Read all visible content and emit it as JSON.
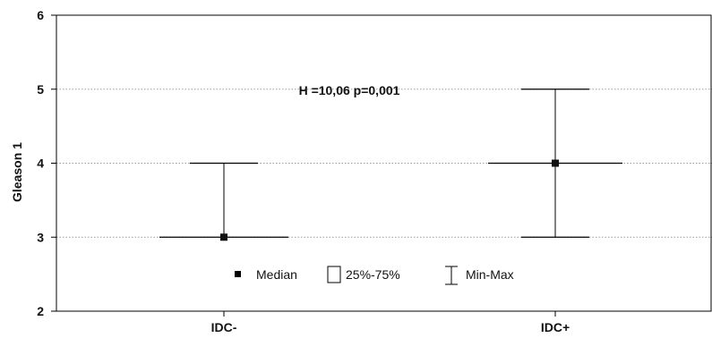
{
  "chart_data": {
    "type": "boxplot",
    "title": "",
    "xlabel": "",
    "ylabel": "Gleason 1",
    "ylim": [
      2,
      6
    ],
    "yticks": [
      2,
      3,
      4,
      5,
      6
    ],
    "grid": true,
    "categories": [
      "IDC-",
      "IDC+"
    ],
    "boxes": [
      {
        "category": "IDC-",
        "median": 3,
        "q1": 3,
        "q3": 3,
        "min": 3,
        "max": 4
      },
      {
        "category": "IDC+",
        "median": 4,
        "q1": 4,
        "q3": 4,
        "min": 3,
        "max": 5
      }
    ],
    "annotation": "H =10,06  p=0,001",
    "legend": {
      "placement": "bottom-center",
      "items": [
        {
          "symbol": "median",
          "label": "Median"
        },
        {
          "symbol": "box",
          "label": "25%-75%"
        },
        {
          "symbol": "whisker",
          "label": "Min-Max"
        }
      ]
    }
  }
}
